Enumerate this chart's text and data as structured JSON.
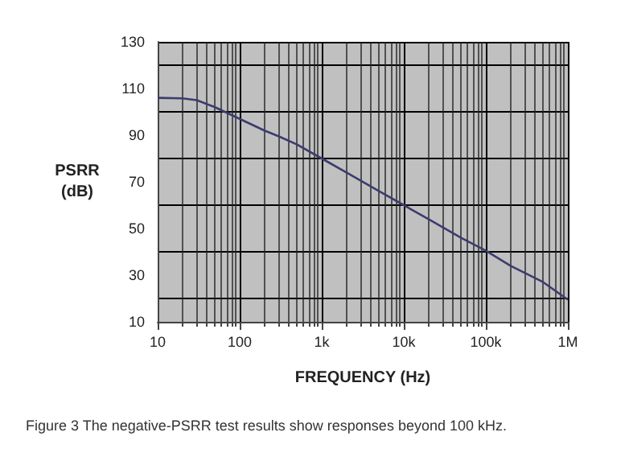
{
  "chart_data": {
    "type": "line",
    "xlabel": "FREQUENCY (Hz)",
    "ylabel": "PSRR\n(dB)",
    "log": "x",
    "grid": true,
    "marker": "none",
    "line_style": "solid",
    "annotations": [
      "Figure 3 The negative-PSRR test results show responses beyond 100 kHz."
    ],
    "x": [
      10,
      20,
      30,
      50,
      100,
      200,
      300,
      500,
      1000,
      2000,
      5000,
      10000,
      20000,
      50000,
      100000,
      200000,
      500000,
      1000000
    ],
    "series": [
      {
        "color": "#3c3c6e",
        "values": [
          106,
          105.8,
          105,
          102,
          97,
          92,
          89.5,
          86,
          80,
          74,
          66,
          60,
          54,
          46,
          40.5,
          34,
          27,
          19.5
        ]
      }
    ],
    "xlim": [
      10,
      1000000
    ],
    "xticks": [
      10,
      100,
      {
        "value": 1000,
        "label": "1k"
      },
      {
        "value": 10000,
        "label": "10k"
      },
      {
        "value": 100000,
        "label": "100k"
      },
      {
        "value": 1000000,
        "label": "1M"
      }
    ],
    "ylim": [
      10,
      130
    ],
    "yticks": [
      10,
      30,
      50,
      70,
      90,
      110,
      130
    ]
  }
}
